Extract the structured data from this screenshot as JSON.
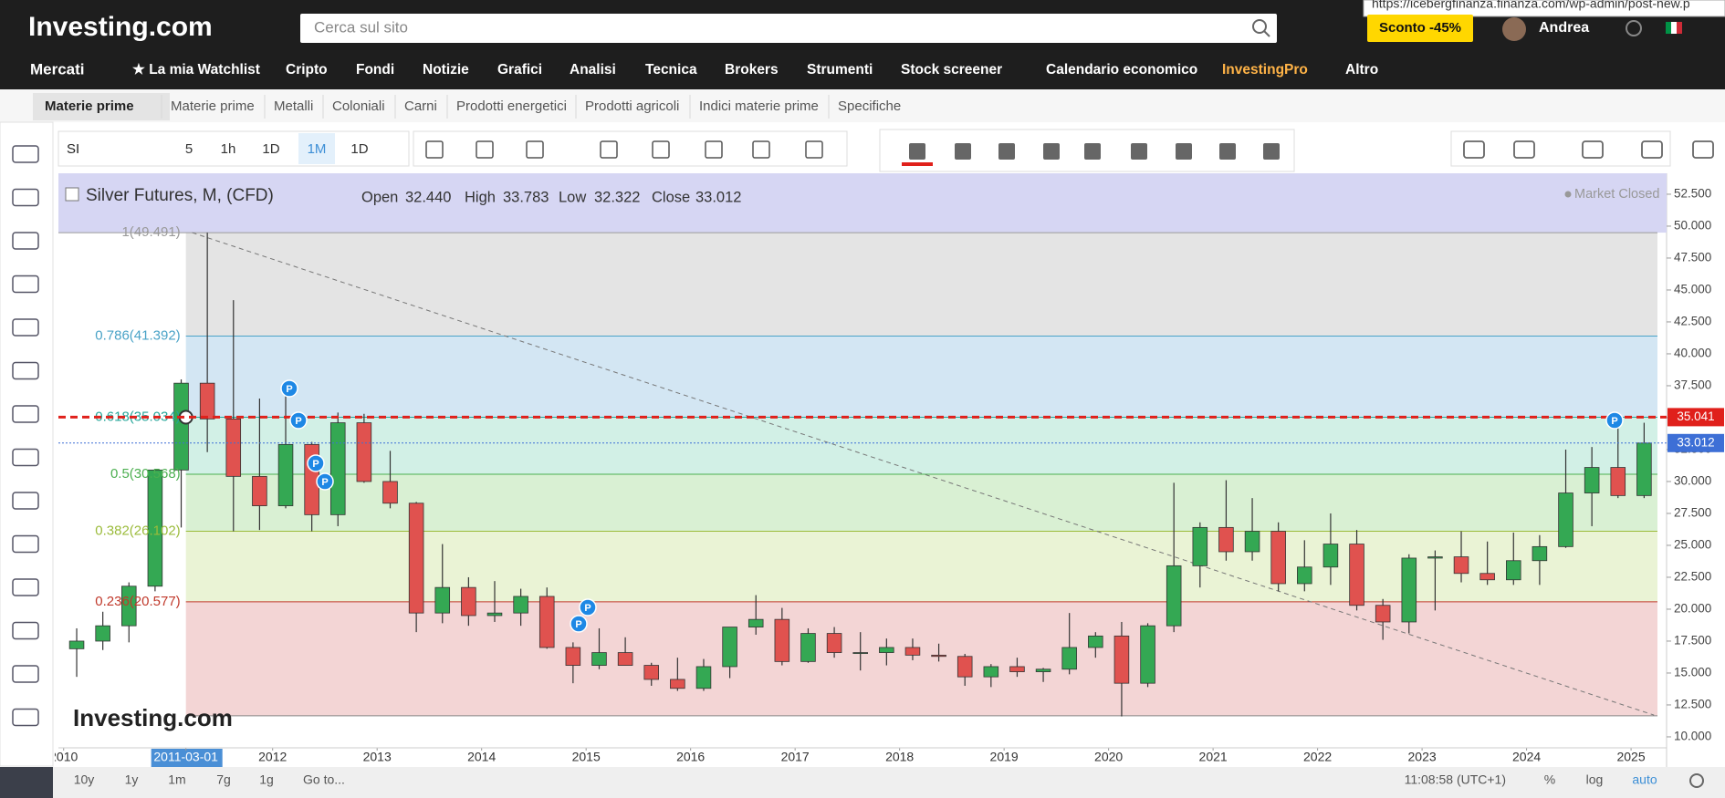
{
  "browser": {
    "url_tooltip": "https://icebergfinanza.finanza.com/wp-admin/post-new.p"
  },
  "header": {
    "logo": "Investing.com",
    "search_placeholder": "Cerca sul sito",
    "promo": "Sconto -45%",
    "user": "Andrea"
  },
  "nav": [
    "Mercati",
    "★ La mia Watchlist",
    "Cripto",
    "Fondi",
    "Notizie",
    "Grafici",
    "Analisi",
    "Tecnica",
    "Brokers",
    "Strumenti",
    "Stock screener",
    "Calendario economico",
    "InvestingPro",
    "Altro"
  ],
  "subnav": [
    "Materie prime",
    "Materie prime",
    "Metalli",
    "Coloniali",
    "Carni",
    "Prodotti energetici",
    "Prodotti agricoli",
    "Indici materie prime",
    "Specifiche"
  ],
  "toolbar": {
    "symbol": "SI",
    "intervals": [
      "5",
      "1h",
      "1D",
      "1M",
      "1D"
    ]
  },
  "chart_data": {
    "type": "candlestick",
    "title": "Silver Futures, M, (CFD)",
    "ohlc_legend": {
      "names": [
        "Open",
        "High",
        "Low",
        "Close"
      ],
      "values": [
        32.44,
        33.783,
        32.322,
        33.012
      ],
      "value_labels": [
        "32.440",
        "33.783",
        "32.322",
        "33.012"
      ]
    },
    "status": "Market Closed",
    "watermark": "Investing.com",
    "marker_label": "P",
    "up_color": "#34a853",
    "down_color": "#e0524f",
    "x": [
      2010.125,
      2010.375,
      2010.625,
      2010.875,
      2011.125,
      2011.375,
      2011.625,
      2011.875,
      2012.125,
      2012.375,
      2012.625,
      2012.875,
      2013.125,
      2013.375,
      2013.625,
      2013.875,
      2014.125,
      2014.375,
      2014.625,
      2014.875,
      2015.125,
      2015.375,
      2015.625,
      2015.875,
      2016.125,
      2016.375,
      2016.625,
      2016.875,
      2017.125,
      2017.375,
      2017.625,
      2017.875,
      2018.125,
      2018.375,
      2018.625,
      2018.875,
      2019.125,
      2019.375,
      2019.625,
      2019.875,
      2020.125,
      2020.375,
      2020.625,
      2020.875,
      2021.125,
      2021.375,
      2021.625,
      2021.875,
      2022.125,
      2022.375,
      2022.625,
      2022.875,
      2023.125,
      2023.375,
      2023.625,
      2023.875,
      2024.125,
      2024.375,
      2024.625,
      2024.875,
      2025.125
    ],
    "open": [
      16.9,
      17.5,
      18.7,
      21.8,
      30.9,
      37.7,
      34.9,
      30.4,
      28.1,
      32.9,
      27.4,
      34.6,
      30.0,
      28.3,
      19.7,
      21.7,
      19.5,
      19.7,
      21.0,
      17.0,
      15.6,
      16.6,
      15.6,
      14.5,
      13.8,
      15.5,
      18.6,
      19.2,
      15.9,
      18.1,
      16.6,
      16.6,
      17.0,
      16.4,
      16.3,
      14.7,
      15.5,
      15.1,
      15.3,
      17.0,
      17.9,
      14.2,
      18.7,
      23.4,
      26.4,
      24.5,
      26.1,
      22.0,
      23.3,
      25.1,
      20.3,
      19.0,
      24.0,
      24.1,
      22.8,
      22.3,
      23.8,
      24.9,
      29.1,
      31.1,
      28.9
    ],
    "high": [
      18.5,
      19.8,
      22.1,
      31.0,
      38.0,
      49.491,
      44.2,
      36.5,
      37.5,
      33.1,
      35.4,
      35.3,
      32.4,
      28.4,
      25.1,
      22.5,
      22.2,
      21.6,
      21.7,
      17.4,
      18.5,
      17.8,
      15.8,
      16.2,
      16.1,
      18.2,
      21.1,
      20.1,
      18.5,
      18.6,
      18.2,
      17.7,
      17.7,
      17.3,
      16.5,
      15.7,
      16.2,
      15.4,
      19.7,
      18.2,
      19.0,
      18.9,
      29.9,
      26.8,
      30.1,
      28.7,
      26.8,
      25.4,
      27.5,
      26.2,
      20.8,
      24.3,
      24.6,
      26.1,
      25.3,
      26.0,
      25.8,
      32.5,
      32.7,
      34.9,
      34.6
    ],
    "low": [
      14.7,
      16.8,
      17.4,
      21.4,
      26.4,
      32.3,
      26.1,
      26.2,
      27.9,
      26.1,
      26.5,
      29.9,
      27.9,
      18.2,
      18.9,
      18.7,
      19.0,
      18.7,
      16.9,
      14.2,
      15.3,
      15.6,
      14.0,
      13.6,
      13.6,
      14.6,
      18.0,
      15.6,
      15.8,
      16.2,
      15.2,
      15.6,
      16.0,
      15.9,
      14.0,
      13.9,
      14.7,
      14.3,
      14.9,
      16.2,
      11.6,
      13.9,
      18.2,
      21.7,
      23.8,
      23.8,
      21.4,
      21.4,
      21.9,
      19.9,
      17.6,
      18.1,
      19.9,
      22.1,
      21.9,
      21.9,
      21.9,
      24.8,
      26.5,
      28.7,
      28.7
    ],
    "close": [
      17.5,
      18.7,
      21.8,
      30.9,
      37.7,
      34.9,
      30.4,
      28.1,
      32.9,
      27.4,
      34.6,
      30.0,
      28.3,
      19.7,
      21.7,
      19.5,
      19.7,
      21.0,
      17.0,
      15.6,
      16.6,
      15.6,
      14.5,
      13.8,
      15.5,
      18.6,
      19.2,
      15.9,
      18.1,
      16.6,
      16.6,
      17.0,
      16.4,
      16.3,
      14.7,
      15.5,
      15.1,
      15.3,
      17.0,
      17.9,
      14.2,
      18.7,
      23.4,
      26.4,
      24.5,
      26.1,
      22.0,
      23.3,
      25.1,
      20.3,
      19.0,
      24.0,
      24.1,
      22.8,
      22.3,
      23.8,
      24.9,
      29.1,
      31.1,
      28.9,
      33.012
    ],
    "xlim": [
      2009.95,
      2025.34
    ],
    "ylim": [
      9.14,
      54.14
    ],
    "xticks": [
      2010,
      {
        "value": 2011.17,
        "label": "2011-03-01"
      },
      2012,
      2013,
      2014,
      2015,
      2016,
      2017,
      2018,
      2019,
      2020,
      2021,
      2022,
      2023,
      2024,
      2025
    ],
    "yticks": [
      {
        "value": 10,
        "label": "10.000"
      },
      {
        "value": 12.5,
        "label": "12.500"
      },
      {
        "value": 15,
        "label": "15.000"
      },
      {
        "value": 17.5,
        "label": "17.500"
      },
      {
        "value": 20,
        "label": "20.000"
      },
      {
        "value": 22.5,
        "label": "22.500"
      },
      {
        "value": 25,
        "label": "25.000"
      },
      {
        "value": 27.5,
        "label": "27.500"
      },
      {
        "value": 30,
        "label": "30.000"
      },
      {
        "value": 32.5,
        "label": "32.500"
      },
      {
        "value": 35,
        "label": "35.000"
      },
      {
        "value": 37.5,
        "label": "37.500"
      },
      {
        "value": 40,
        "label": "40.000"
      },
      {
        "value": 42.5,
        "label": "42.500"
      },
      {
        "value": 45,
        "label": "45.000"
      },
      {
        "value": 47.5,
        "label": "47.500"
      },
      {
        "value": 50,
        "label": "50.000"
      },
      {
        "value": 52.5,
        "label": "52.500"
      }
    ],
    "fibonacci": {
      "prices": [
        49.491,
        41.392,
        35.034,
        30.568,
        26.102,
        20.577
      ],
      "labels": [
        "1(49.491)",
        "0.786(41.392)",
        "0.618(35.034)",
        "0.5(30.568)",
        "0.382(26.102)",
        "0.236(20.577)"
      ],
      "base": 11.645,
      "colors": [
        "#9a9a9a",
        "#4aa3c7",
        "#26a69a",
        "#4caf50",
        "#9bbb3b",
        "#c0392b"
      ],
      "band_colors": [
        "#e4e4e4",
        "#d3e6f3",
        "#d2f0e6",
        "#d9f0d3",
        "#eaf3d5",
        "#f3d5d5"
      ],
      "top_color": "#d6d6f3"
    },
    "trendline": {
      "x": [
        2011.23,
        2025.22
      ],
      "y": [
        49.491,
        11.7
      ]
    },
    "price_lines": [
      {
        "value": 35.041,
        "label": "35.041",
        "color": "#e0201b"
      },
      {
        "value": 33.012,
        "label": "33.012",
        "color": "#3d6fd6"
      }
    ]
  },
  "bottom_bar": {
    "ranges": [
      "10y",
      "1y",
      "1m",
      "7g",
      "1g"
    ],
    "goto": "Go to...",
    "time": "11:08:58 (UTC+1)",
    "options": [
      "%",
      "log",
      "auto"
    ]
  }
}
